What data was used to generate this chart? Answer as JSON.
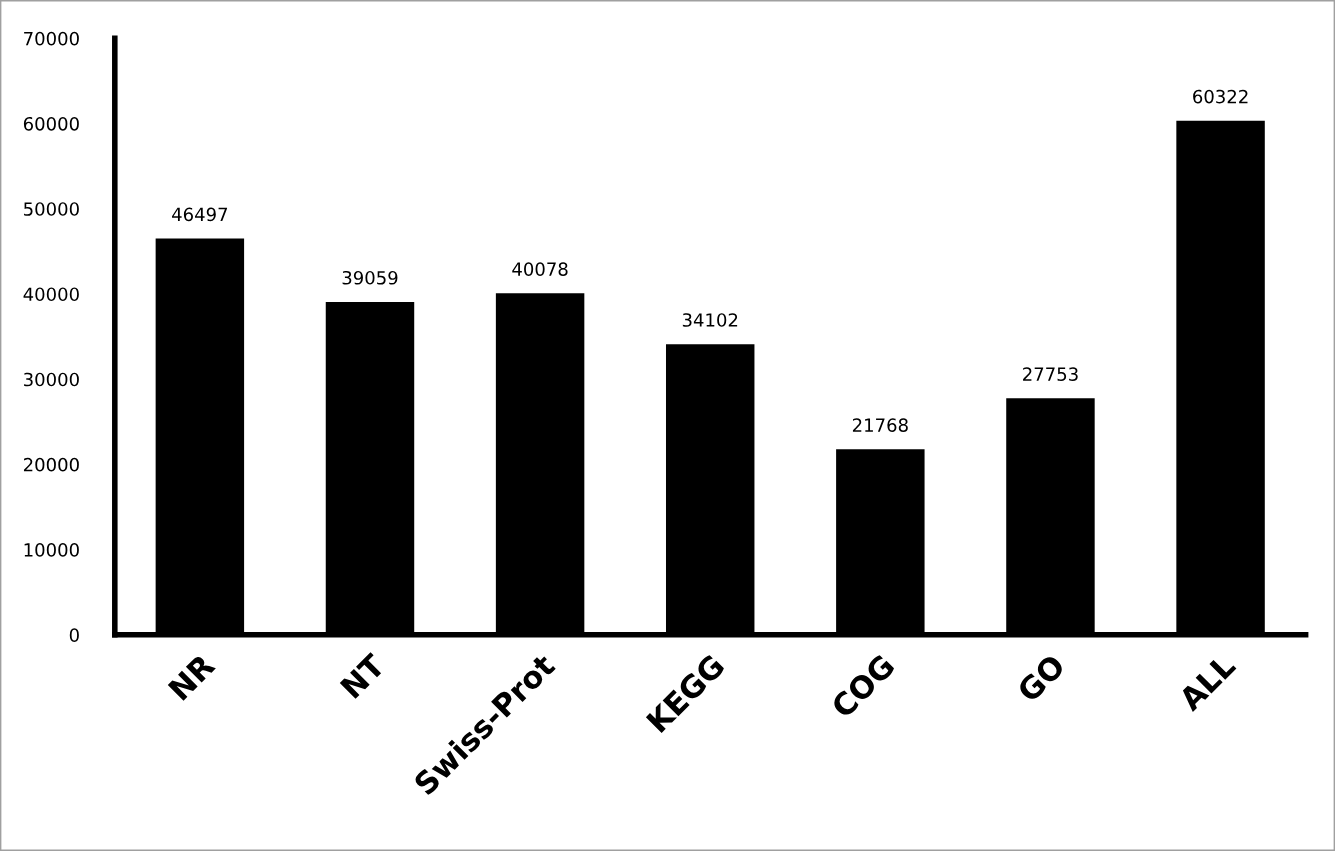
{
  "chart_data": {
    "type": "bar",
    "categories": [
      "NR",
      "NT",
      "Swiss-Prot",
      "KEGG",
      "COG",
      "GO",
      "ALL"
    ],
    "values": [
      46497,
      39059,
      40078,
      34102,
      21768,
      27753,
      60322
    ],
    "color": "#000000",
    "ylim": [
      0,
      70000
    ],
    "yticks": [
      0,
      10000,
      20000,
      30000,
      40000,
      50000,
      60000,
      70000
    ],
    "grid": false,
    "data_labels": true
  }
}
